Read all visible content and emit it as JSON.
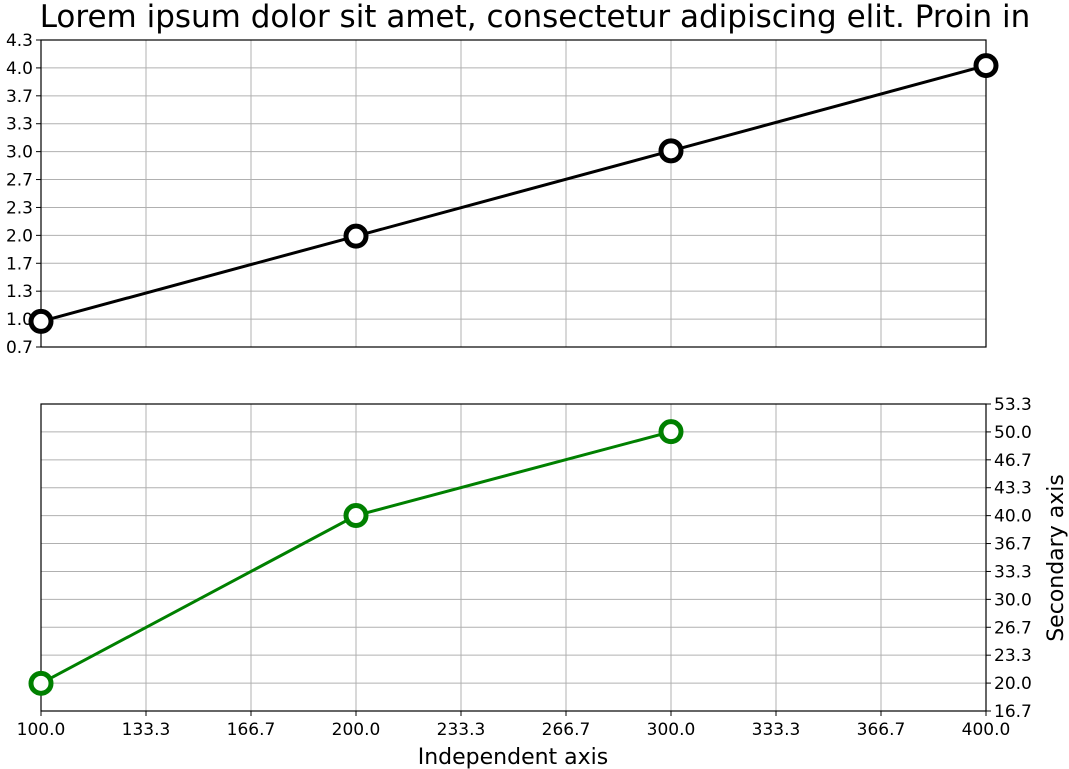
{
  "chart_data": [
    {
      "type": "line",
      "title": "Lorem ipsum dolor sit amet, consectetur adipiscing elit. Proin in",
      "xlabel": "",
      "ylabel": "",
      "x": [
        100,
        200,
        300,
        400
      ],
      "series": [
        {
          "values": [
            1.0,
            2.0,
            3.0,
            4.0
          ],
          "color": "#000000"
        }
      ],
      "xlim": [
        100,
        400
      ],
      "ylim": [
        0.7,
        4.3
      ],
      "yticks": [
        "0.7",
        "1.0",
        "1.3",
        "1.7",
        "2.0",
        "2.3",
        "2.7",
        "3.0",
        "3.3",
        "3.7",
        "4.0",
        "4.3"
      ],
      "grid": true
    },
    {
      "type": "line",
      "xlabel": "Independent axis",
      "ylabel": "Secondary axis",
      "x": [
        100,
        200,
        300
      ],
      "series": [
        {
          "values": [
            20.0,
            40.0,
            50.0
          ],
          "color": "#008000"
        }
      ],
      "xlim": [
        100,
        400
      ],
      "ylim": [
        16.7,
        53.3
      ],
      "xticks": [
        "100.0",
        "133.3",
        "166.7",
        "200.0",
        "233.3",
        "266.7",
        "300.0",
        "333.3",
        "366.7",
        "400.0"
      ],
      "yticks": [
        "16.7",
        "20.0",
        "23.3",
        "26.7",
        "30.0",
        "33.3",
        "36.7",
        "40.0",
        "43.3",
        "46.7",
        "50.0",
        "53.3"
      ],
      "y_axis_side": "right",
      "grid": true
    }
  ]
}
